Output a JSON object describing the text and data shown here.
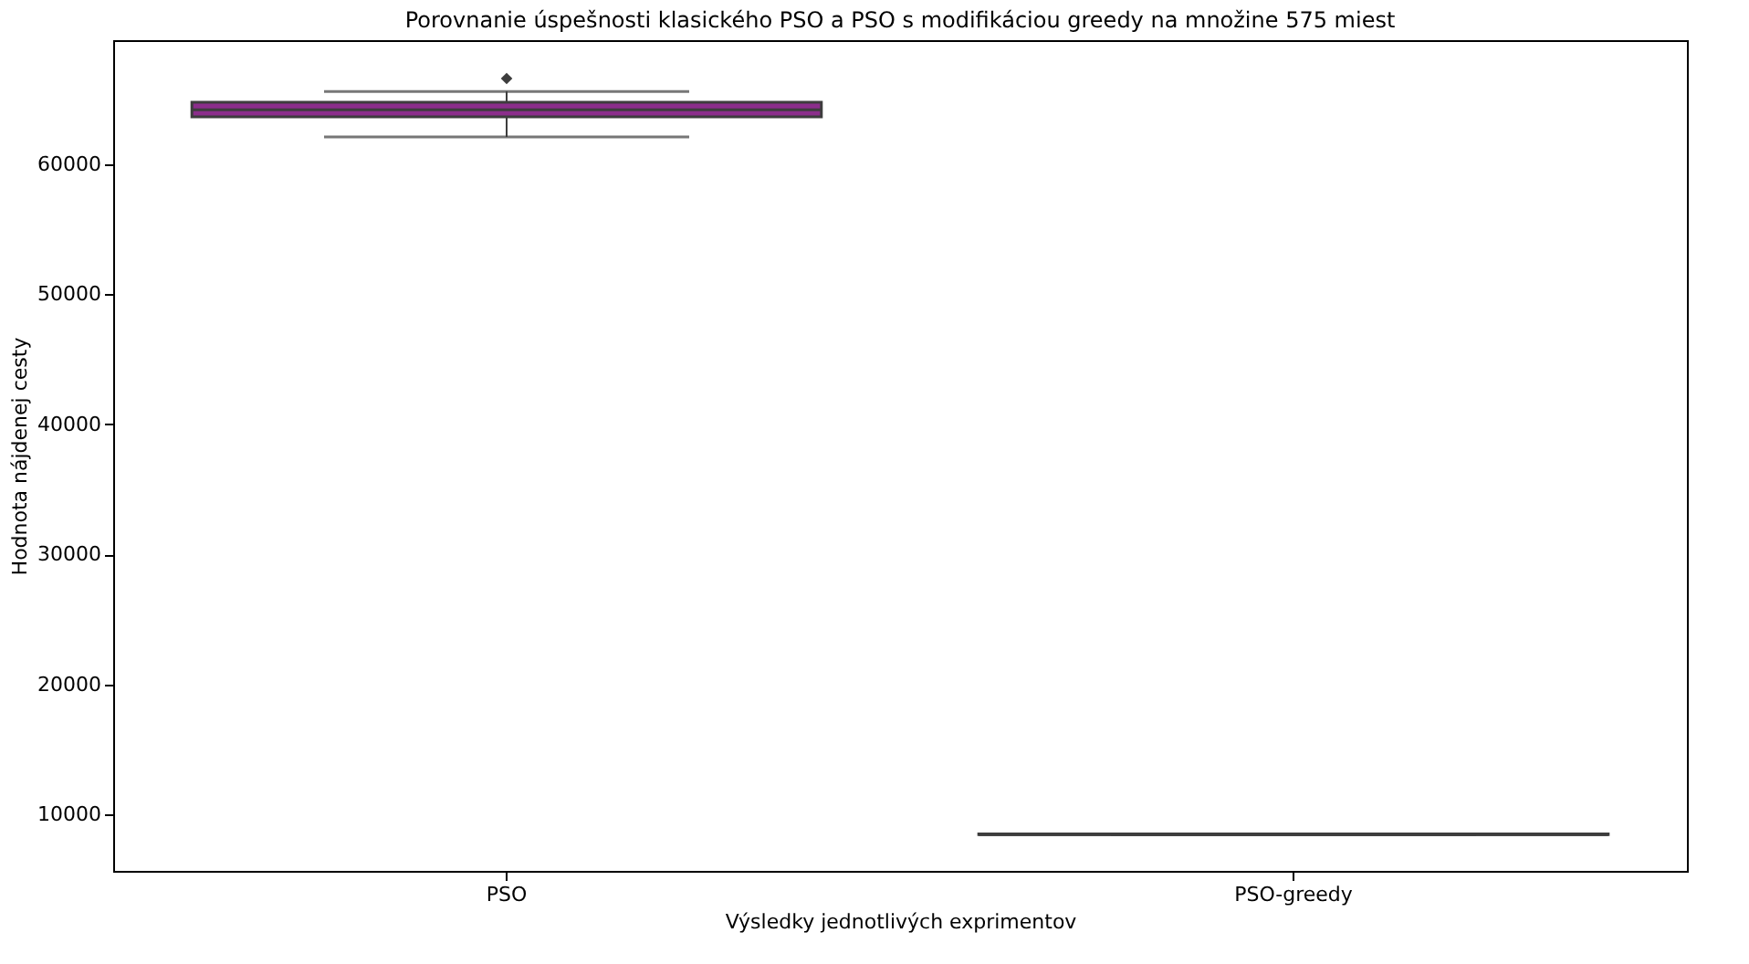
{
  "chart_data": {
    "type": "box",
    "title": "Porovnanie úspešnosti klasického PSO a PSO s modifikáciou greedy na množine 575 miest",
    "xlabel": "Výsledky jednotlivých exprimentov",
    "ylabel": "Hodnota nájdenej cesty",
    "categories": [
      "PSO",
      "PSO-greedy"
    ],
    "boxes": [
      {
        "low": 62100,
        "q1": 63650,
        "median": 64200,
        "q3": 64770,
        "high": 65600,
        "outliers": [
          66600
        ]
      },
      {
        "low": 8450,
        "q1": 8450,
        "median": 8450,
        "q3": 8500,
        "high": 8500
      }
    ],
    "colors": [
      "#8b2e8b",
      "#8b2e8b"
    ],
    "ylim": [
      5650,
      69550
    ],
    "yticks": [
      10000,
      20000,
      30000,
      40000,
      50000,
      60000
    ],
    "grid": false
  }
}
